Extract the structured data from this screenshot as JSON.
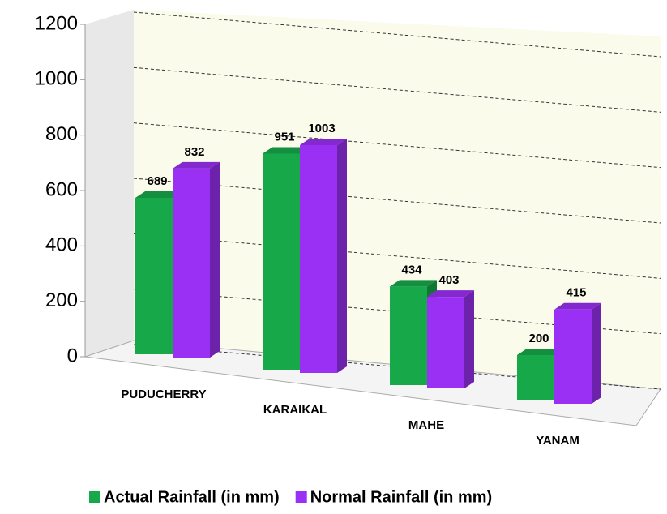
{
  "chart_data": {
    "type": "bar3d",
    "categories": [
      "PUDUCHERRY",
      "KARAIKAL",
      "MAHE",
      "YANAM"
    ],
    "series": [
      {
        "name": "Actual Rainfall (in mm)",
        "color": "#17a84a",
        "values": [
          689,
          951,
          434,
          200
        ]
      },
      {
        "name": "Normal Rainfall (in mm)",
        "color": "#9b30f5",
        "values": [
          832,
          1003,
          403,
          415
        ]
      }
    ],
    "ylim": [
      0,
      1200
    ],
    "yticks": [
      0,
      200,
      400,
      600,
      800,
      1000,
      1200
    ],
    "grid": true,
    "legend": "bottom"
  }
}
